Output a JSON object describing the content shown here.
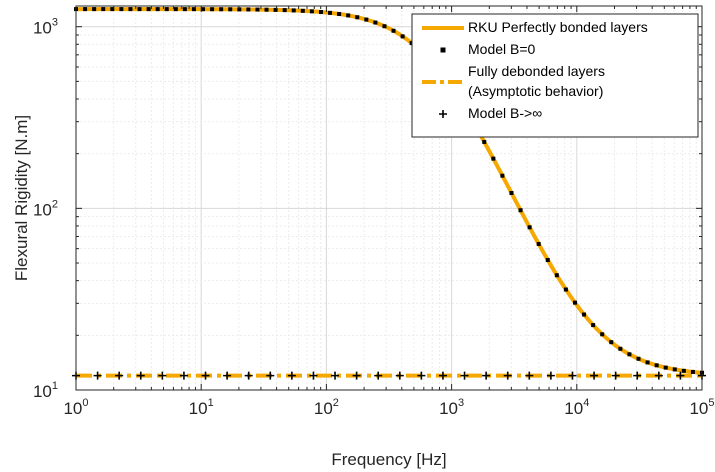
{
  "chart_data": {
    "type": "line",
    "title": "",
    "xlabel": "Frequency [Hz]",
    "ylabel": "Flexural Rigidity [N.m]",
    "xscale": "log",
    "yscale": "log",
    "xlim": [
      1,
      100000
    ],
    "ylim": [
      10,
      1300
    ],
    "grid": true,
    "legend_position": "top-right",
    "x_ticks": [
      {
        "base": "10",
        "exp": "0",
        "value": 1
      },
      {
        "base": "10",
        "exp": "1",
        "value": 10
      },
      {
        "base": "10",
        "exp": "2",
        "value": 100
      },
      {
        "base": "10",
        "exp": "3",
        "value": 1000
      },
      {
        "base": "10",
        "exp": "4",
        "value": 10000
      },
      {
        "base": "10",
        "exp": "5",
        "value": 100000
      }
    ],
    "y_ticks": [
      {
        "base": "10",
        "exp": "1",
        "value": 10
      },
      {
        "base": "10",
        "exp": "2",
        "value": 100
      },
      {
        "base": "10",
        "exp": "3",
        "value": 1000
      }
    ],
    "series": [
      {
        "name": "RKU Perfectly bonded layers",
        "style": "solid-line",
        "color": "#f5a800",
        "model": "transition",
        "d_high": 1250,
        "d_low": 12,
        "f_c": 700,
        "exponent": 1.6
      },
      {
        "name": "Model B=0",
        "style": "square-markers",
        "color": "#000000",
        "model": "transition",
        "marker_count": 70
      },
      {
        "name_lines": [
          "Fully debonded layers",
          "(Asymptotic behavior)"
        ],
        "style": "dash-dot-line",
        "color": "#f5a800",
        "model": "constant",
        "value": 12
      },
      {
        "name": "Model B->∞",
        "style": "plus-markers",
        "color": "#000000",
        "model": "constant",
        "value": 12,
        "marker_count": 30
      }
    ]
  }
}
